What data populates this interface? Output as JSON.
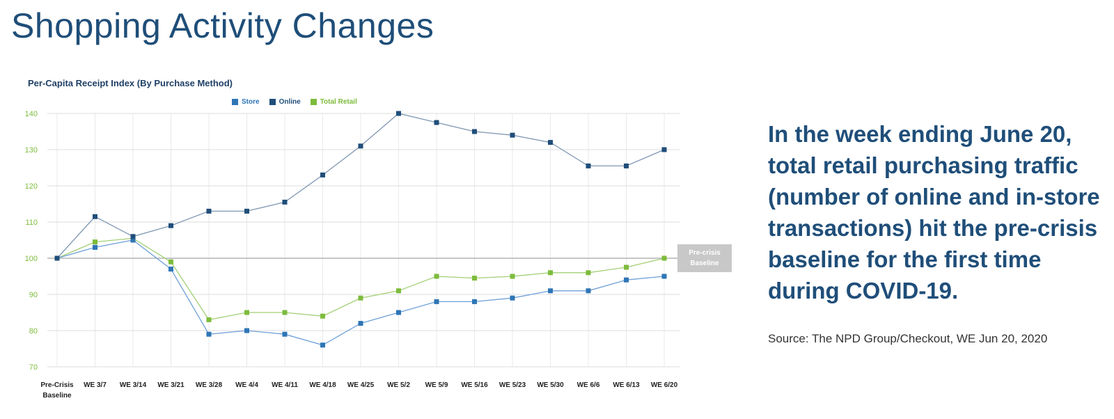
{
  "page": {
    "title": "Shopping Activity Changes",
    "headline": "In the week ending June 20, total retail purchasing traffic (number of online and in-store transactions) hit the pre-crisis baseline for the first time during COVID-19.",
    "source": "Source: The NPD Group/Checkout, WE Jun 20, 2020"
  },
  "chart_data": {
    "type": "line",
    "title": "Per-Capita Receipt Index (By Purchase Method)",
    "xlabel": "",
    "ylabel": "",
    "categories": [
      "Pre-Crisis Baseline",
      "WE 3/7",
      "WE 3/14",
      "WE 3/21",
      "WE 3/28",
      "WE 4/4",
      "WE 4/11",
      "WE 4/18",
      "WE 4/25",
      "WE 5/2",
      "WE 5/9",
      "WE 5/16",
      "WE 5/23",
      "WE 5/30",
      "WE 6/6",
      "WE 6/13",
      "WE 6/20"
    ],
    "category_lines": [
      [
        "Pre-Crisis",
        "Baseline"
      ],
      [
        "WE 3/7"
      ],
      [
        "WE 3/14"
      ],
      [
        "WE 3/21"
      ],
      [
        "WE 3/28"
      ],
      [
        "WE 4/4"
      ],
      [
        "WE 4/11"
      ],
      [
        "WE 4/18"
      ],
      [
        "WE 4/25"
      ],
      [
        "WE 5/2"
      ],
      [
        "WE 5/9"
      ],
      [
        "WE 5/16"
      ],
      [
        "WE 5/23"
      ],
      [
        "WE 5/30"
      ],
      [
        "WE 6/6"
      ],
      [
        "WE 6/13"
      ],
      [
        "WE 6/20"
      ]
    ],
    "ylim": [
      70,
      140
    ],
    "yticks": [
      70,
      80,
      90,
      100,
      110,
      120,
      130,
      140
    ],
    "grid": true,
    "legend_position": "top",
    "series": [
      {
        "name": "Store",
        "color": "#2e75b6",
        "line_color": "#6fa0d8",
        "values": [
          100,
          103,
          105,
          97,
          79,
          80,
          79,
          76,
          82,
          85,
          88,
          88,
          89,
          91,
          91,
          94,
          95
        ]
      },
      {
        "name": "Online",
        "color": "#1f4e79",
        "line_color": "#7f97b2",
        "values": [
          100,
          111.5,
          106,
          109,
          113,
          113,
          115.5,
          123,
          131,
          140,
          137.5,
          135,
          134,
          132,
          125.5,
          125.5,
          130
        ]
      },
      {
        "name": "Total Retail",
        "color": "#7dbb3c",
        "line_color": "#a3cf75",
        "values": [
          100,
          104.5,
          105.5,
          99,
          83,
          85,
          85,
          84,
          89,
          91,
          95,
          94.5,
          95,
          96,
          96,
          97.5,
          100
        ]
      }
    ],
    "baseline": {
      "value": 100,
      "label_lines": [
        "Pre-crisis",
        "Baseline"
      ]
    }
  }
}
